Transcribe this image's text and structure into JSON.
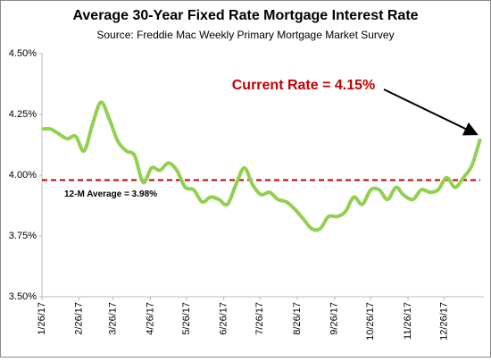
{
  "chart_data": {
    "type": "line",
    "title": "Average 30-Year Fixed Rate Mortgage Interest Rate",
    "subtitle": "Source: Freddie Mac Weekly Primary Mortgage Market Survey",
    "x": [
      "2017-01-26",
      "2017-02-02",
      "2017-02-09",
      "2017-02-16",
      "2017-02-23",
      "2017-03-02",
      "2017-03-09",
      "2017-03-16",
      "2017-03-23",
      "2017-03-30",
      "2017-04-06",
      "2017-04-13",
      "2017-04-20",
      "2017-04-27",
      "2017-05-04",
      "2017-05-11",
      "2017-05-18",
      "2017-05-25",
      "2017-06-01",
      "2017-06-08",
      "2017-06-15",
      "2017-06-22",
      "2017-06-29",
      "2017-07-06",
      "2017-07-13",
      "2017-07-20",
      "2017-07-27",
      "2017-08-03",
      "2017-08-10",
      "2017-08-17",
      "2017-08-24",
      "2017-08-31",
      "2017-09-07",
      "2017-09-14",
      "2017-09-21",
      "2017-09-28",
      "2017-10-05",
      "2017-10-12",
      "2017-10-19",
      "2017-10-26",
      "2017-11-02",
      "2017-11-09",
      "2017-11-16",
      "2017-11-22",
      "2017-11-30",
      "2017-12-07",
      "2017-12-14",
      "2017-12-21",
      "2017-12-28",
      "2018-01-04",
      "2018-01-11",
      "2018-01-18",
      "2018-01-25"
    ],
    "series": [
      {
        "name": "30-Year Fixed Rate",
        "color": "#92d050",
        "values": [
          4.19,
          4.19,
          4.17,
          4.15,
          4.16,
          4.1,
          4.21,
          4.3,
          4.23,
          4.14,
          4.1,
          4.08,
          3.97,
          4.03,
          4.02,
          4.05,
          4.02,
          3.95,
          3.94,
          3.89,
          3.91,
          3.9,
          3.88,
          3.96,
          4.03,
          3.96,
          3.92,
          3.93,
          3.9,
          3.89,
          3.86,
          3.82,
          3.78,
          3.78,
          3.83,
          3.83,
          3.85,
          3.91,
          3.88,
          3.94,
          3.94,
          3.9,
          3.95,
          3.92,
          3.9,
          3.94,
          3.93,
          3.94,
          3.99,
          3.95,
          3.99,
          4.04,
          4.15
        ]
      }
    ],
    "xlim": [
      "2017-01-26",
      "2018-01-25"
    ],
    "xticks": [
      {
        "value": "2017-01-26",
        "label": "1/26/17"
      },
      {
        "value": "2017-02-26",
        "label": "2/26/17"
      },
      {
        "value": "2017-03-26",
        "label": "3/26/17"
      },
      {
        "value": "2017-04-26",
        "label": "4/26/17"
      },
      {
        "value": "2017-05-26",
        "label": "5/26/17"
      },
      {
        "value": "2017-06-26",
        "label": "6/26/17"
      },
      {
        "value": "2017-07-26",
        "label": "7/26/17"
      },
      {
        "value": "2017-08-26",
        "label": "8/26/17"
      },
      {
        "value": "2017-09-26",
        "label": "9/26/17"
      },
      {
        "value": "2017-10-26",
        "label": "10/26/17"
      },
      {
        "value": "2017-11-26",
        "label": "11/26/17"
      },
      {
        "value": "2017-12-26",
        "label": "12/26/17"
      }
    ],
    "ylim": [
      3.5,
      4.5
    ],
    "yticks": [
      {
        "value": 3.5,
        "label": "3.50%"
      },
      {
        "value": 3.75,
        "label": "3.75%"
      },
      {
        "value": 4.0,
        "label": "4.00%"
      },
      {
        "value": 4.25,
        "label": "4.25%"
      },
      {
        "value": 4.5,
        "label": "4.50%"
      }
    ],
    "grid": false,
    "reference_line": {
      "value": 3.98,
      "label": "12-M Average = 3.98%",
      "color": "#c00000"
    },
    "annotation": {
      "text": "Current Rate = 4.15%",
      "color": "#c00000"
    }
  }
}
